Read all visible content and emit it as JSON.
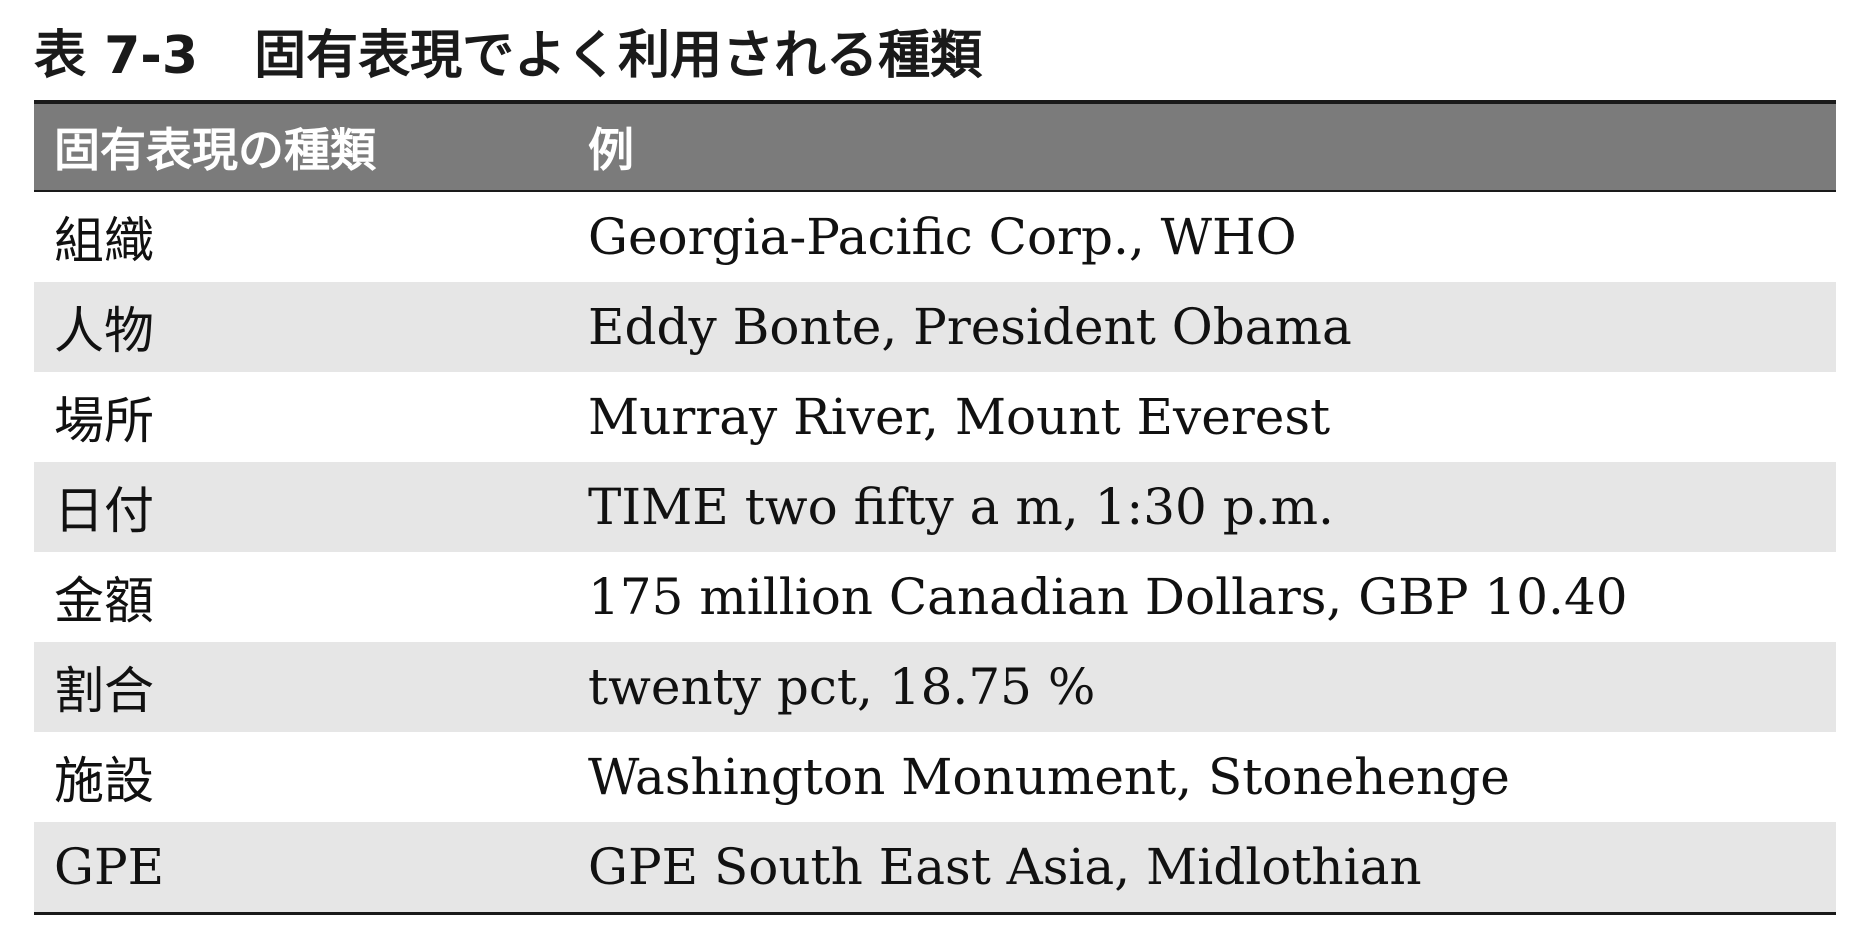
{
  "caption": {
    "number": "表 7-3",
    "title": "固有表現でよく利用される種類"
  },
  "table": {
    "headers": [
      "固有表現の種類",
      "例"
    ],
    "rows": [
      {
        "type": "組織",
        "example": "Georgia-Pacific Corp., WHO"
      },
      {
        "type": "人物",
        "example": "Eddy Bonte, President Obama"
      },
      {
        "type": "場所",
        "example": "Murray River, Mount Everest"
      },
      {
        "type": "日付",
        "example": "TIME two fifty a m, 1:30 p.m."
      },
      {
        "type": "金額",
        "example": "175 million Canadian Dollars, GBP 10.40"
      },
      {
        "type": "割合",
        "example": "twenty pct, 18.75 %"
      },
      {
        "type": "施設",
        "example": "Washington Monument, Stonehenge"
      },
      {
        "type": "GPE",
        "example": "GPE South East Asia, Midlothian"
      }
    ]
  },
  "colors": {
    "header_bg": "#7b7b7b",
    "shaded_row_bg": "#e6e6e6",
    "rule": "#1a1a1a"
  }
}
